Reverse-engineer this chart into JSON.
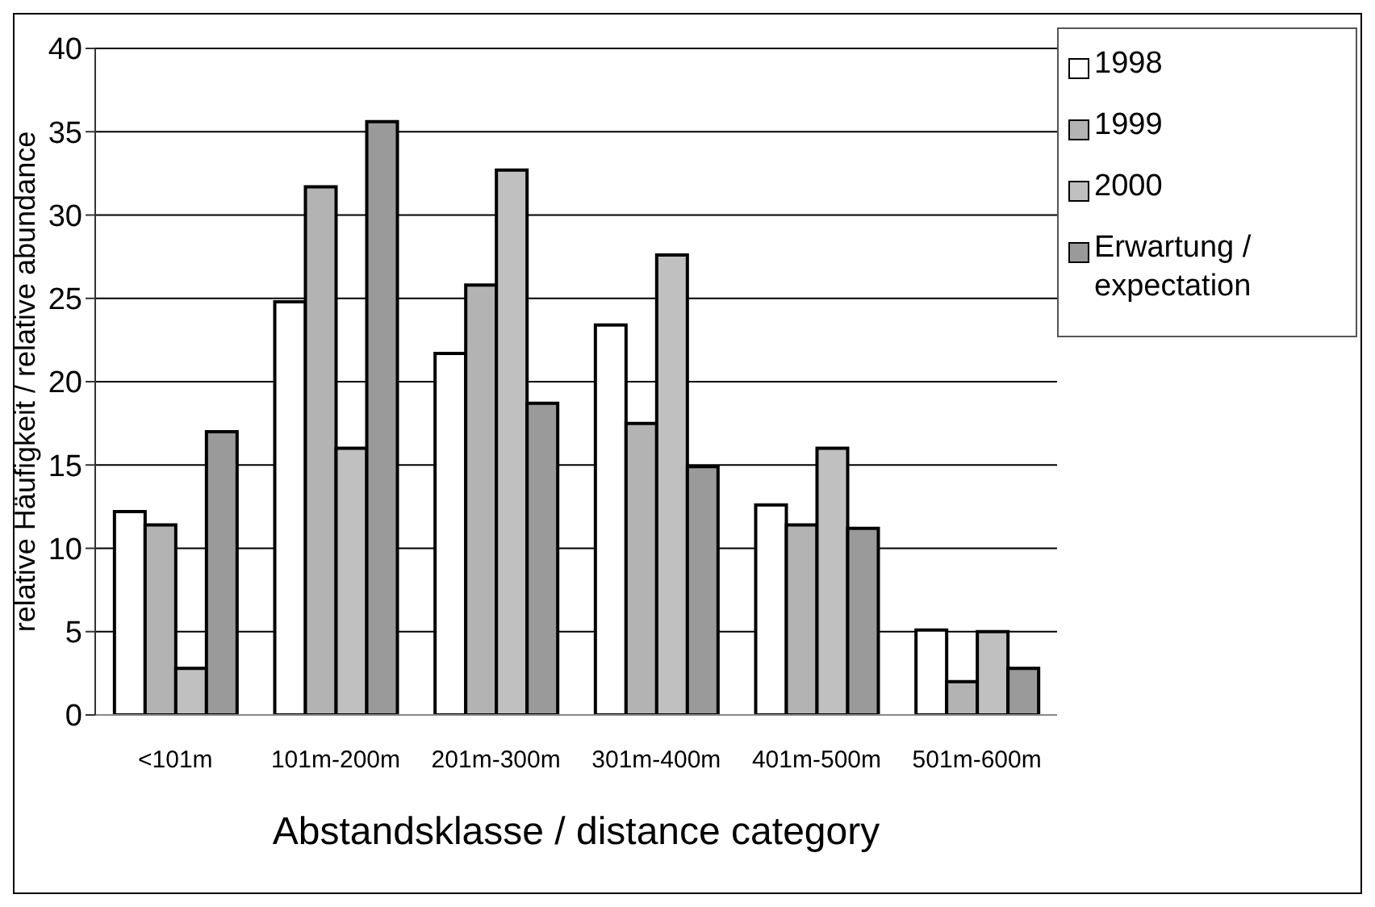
{
  "chart_data": {
    "type": "bar",
    "xlabel": "Abstandsklasse / distance category",
    "ylabel": "relative Häufigkeit / relative abundance",
    "categories": [
      "<101m",
      "101m-200m",
      "201m-300m",
      "301m-400m",
      "401m-500m",
      "501m-600m"
    ],
    "series": [
      {
        "name": "1998",
        "color": "#ffffff",
        "values": [
          12.2,
          24.8,
          21.7,
          23.4,
          12.6,
          5.1
        ]
      },
      {
        "name": "1999",
        "color": "#b3b3b3",
        "values": [
          11.4,
          31.7,
          25.8,
          17.5,
          11.4,
          2.0
        ]
      },
      {
        "name": "2000",
        "color": "#c0c0c0",
        "values": [
          2.8,
          16.0,
          32.7,
          27.6,
          16.0,
          5.0
        ]
      },
      {
        "name": "Erwartung / expectation",
        "color": "#9a9a9a",
        "values": [
          17.0,
          35.6,
          18.7,
          14.9,
          11.2,
          2.8
        ]
      }
    ],
    "ylim": [
      0,
      40
    ],
    "yticks": [
      0,
      5,
      10,
      15,
      20,
      25,
      30,
      35,
      40
    ],
    "grid": "y",
    "legend": "top right"
  }
}
